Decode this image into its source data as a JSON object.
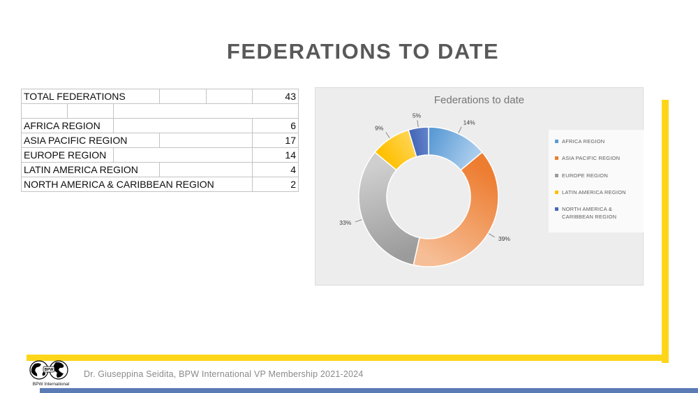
{
  "page": {
    "title": "FEDERATIONS TO DATE",
    "title_color": "#595959",
    "accent_yellow": "#FDD619",
    "accent_blue": "#5B7BB5"
  },
  "table": {
    "rows": [
      {
        "cells": [
          {
            "text": "TOTAL FEDERATIONS",
            "span": 3
          },
          {
            "text": "",
            "span": 1
          },
          {
            "text": "",
            "span": 1
          },
          {
            "text": "43",
            "span": 1,
            "align": "r"
          }
        ]
      },
      {
        "cells": [
          {
            "text": "",
            "span": 1
          },
          {
            "text": "",
            "span": 1
          },
          {
            "text": "",
            "span": 4
          }
        ]
      },
      {
        "cells": [
          {
            "text": "AFRICA REGION",
            "span": 2
          },
          {
            "text": "",
            "span": 3
          },
          {
            "text": "6",
            "span": 1,
            "align": "r"
          }
        ]
      },
      {
        "cells": [
          {
            "text": "ASIA PACIFIC REGION",
            "span": 3
          },
          {
            "text": "",
            "span": 2
          },
          {
            "text": "17",
            "span": 1,
            "align": "r"
          }
        ]
      },
      {
        "cells": [
          {
            "text": "EUROPE REGION",
            "span": 2
          },
          {
            "text": "",
            "span": 3
          },
          {
            "text": "14",
            "span": 1,
            "align": "r"
          }
        ]
      },
      {
        "cells": [
          {
            "text": "LATIN AMERICA REGION",
            "span": 3
          },
          {
            "text": "",
            "span": 2
          },
          {
            "text": "4",
            "span": 1,
            "align": "r"
          }
        ]
      },
      {
        "cells": [
          {
            "text": "NORTH AMERICA & CARIBBEAN REGION",
            "span": 5
          },
          {
            "text": "2",
            "span": 1,
            "align": "r"
          }
        ]
      }
    ]
  },
  "chart_data": {
    "type": "pie",
    "subtype": "donut",
    "title": "Federations to date",
    "categories": [
      "AFRICA REGION",
      "ASIA PACIFIC REGION",
      "EUROPE REGION",
      "LATIN AMERICA REGION",
      "NORTH AMERICA & CARIBBEAN REGION"
    ],
    "values": [
      6,
      17,
      14,
      4,
      2
    ],
    "total": 43,
    "percent_labels": [
      "14%",
      "39%",
      "33%",
      "9%",
      "5%"
    ],
    "colors": [
      "#5B9BD5",
      "#ED7D31",
      "#9B9B9B",
      "#FFC000",
      "#4468B8"
    ],
    "colors_light": [
      "#A9CCEC",
      "#F6BE96",
      "#CFCFCF",
      "#FFD34D",
      "#6281C9"
    ],
    "legend_position": "right"
  },
  "footer": {
    "text": "Dr. Giuseppina Seidita, BPW International VP Membership 2021-2024",
    "logo_text": "BPW",
    "logo_caption": "BPW International"
  }
}
